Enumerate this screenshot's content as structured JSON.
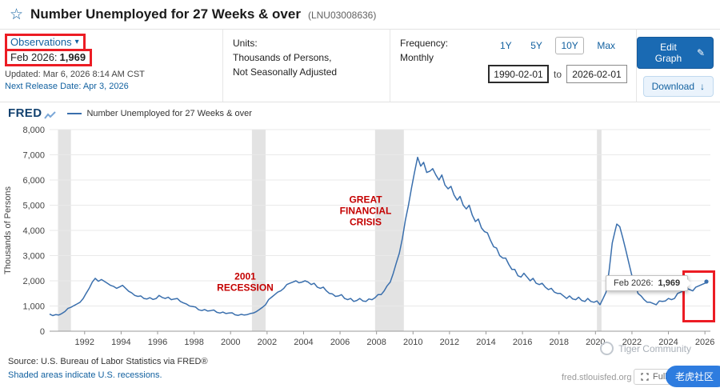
{
  "header": {
    "title": "Number Unemployed for 27 Weeks & over",
    "series_id": "(LNU03008636)"
  },
  "meta": {
    "observations_label": "Observations",
    "latest_label": "Feb 2026:",
    "latest_value": "1,969",
    "updated": "Updated: Mar 6, 2026 8:14 AM CST",
    "next_release": "Next Release Date: Apr 3, 2026",
    "units_label": "Units:",
    "units_line1": "Thousands of Persons,",
    "units_line2": "Not Seasonally Adjusted",
    "frequency_label": "Frequency:",
    "frequency_value": "Monthly"
  },
  "controls": {
    "ranges": [
      "1Y",
      "5Y",
      "10Y",
      "Max"
    ],
    "date_from": "1990-02-01",
    "to_label": "to",
    "date_to": "2026-02-01",
    "edit_graph": "Edit Graph",
    "download": "Download"
  },
  "chart": {
    "logo": "FRED",
    "legend": "Number Unemployed for 27 Weeks & over",
    "tooltip": {
      "label": "Feb 2026:",
      "value": "1,969"
    }
  },
  "chart_data": {
    "type": "line",
    "title": "Number Unemployed for 27 Weeks & over",
    "series_id": "LNU03008636",
    "units": "Thousands of Persons",
    "frequency": "Monthly",
    "ylabel": "Thousands of Persons",
    "xlim": [
      1990.08,
      2026.3
    ],
    "ylim": [
      0,
      8000
    ],
    "yticks": [
      0,
      1000,
      2000,
      3000,
      4000,
      5000,
      6000,
      7000,
      8000
    ],
    "ytick_labels": [
      "0",
      "1,000",
      "2,000",
      "3,000",
      "4,000",
      "5,000",
      "6,000",
      "7,000",
      "8,000"
    ],
    "xticks": [
      1992,
      1994,
      1996,
      1998,
      2000,
      2002,
      2004,
      2006,
      2008,
      2010,
      2012,
      2014,
      2016,
      2018,
      2020,
      2022,
      2024,
      2026
    ],
    "line_color": "#3a6fad",
    "grid": true,
    "recessions": [
      [
        1990.54,
        1991.25
      ],
      [
        2001.17,
        2001.92
      ],
      [
        2007.92,
        2009.5
      ],
      [
        2020.08,
        2020.33
      ]
    ],
    "annotations": [
      {
        "lines": [
          "2001",
          "RECESSION"
        ],
        "x": 2000.8,
        "y": 2050,
        "color": "#c40000"
      },
      {
        "lines": [
          "GREAT",
          "FINANCIAL",
          "CRISIS"
        ],
        "x": 2007.4,
        "y": 5100,
        "color": "#c40000"
      }
    ],
    "latest_point": {
      "date": "Feb 2026",
      "value": 1969
    },
    "points": [
      [
        1990.08,
        680
      ],
      [
        1990.25,
        620
      ],
      [
        1990.42,
        660
      ],
      [
        1990.58,
        640
      ],
      [
        1990.75,
        700
      ],
      [
        1990.92,
        780
      ],
      [
        1991.08,
        900
      ],
      [
        1991.25,
        950
      ],
      [
        1991.42,
        1020
      ],
      [
        1991.58,
        1080
      ],
      [
        1991.75,
        1150
      ],
      [
        1991.92,
        1300
      ],
      [
        1992.08,
        1500
      ],
      [
        1992.25,
        1700
      ],
      [
        1992.42,
        1950
      ],
      [
        1992.58,
        2100
      ],
      [
        1992.75,
        1980
      ],
      [
        1992.92,
        2050
      ],
      [
        1993.08,
        1980
      ],
      [
        1993.25,
        1900
      ],
      [
        1993.42,
        1820
      ],
      [
        1993.58,
        1780
      ],
      [
        1993.75,
        1700
      ],
      [
        1993.92,
        1760
      ],
      [
        1994.08,
        1820
      ],
      [
        1994.25,
        1700
      ],
      [
        1994.42,
        1580
      ],
      [
        1994.58,
        1520
      ],
      [
        1994.75,
        1420
      ],
      [
        1994.92,
        1380
      ],
      [
        1995.08,
        1400
      ],
      [
        1995.25,
        1300
      ],
      [
        1995.42,
        1280
      ],
      [
        1995.58,
        1330
      ],
      [
        1995.75,
        1260
      ],
      [
        1995.92,
        1300
      ],
      [
        1996.08,
        1420
      ],
      [
        1996.25,
        1340
      ],
      [
        1996.42,
        1300
      ],
      [
        1996.58,
        1350
      ],
      [
        1996.75,
        1250
      ],
      [
        1996.92,
        1280
      ],
      [
        1997.08,
        1300
      ],
      [
        1997.25,
        1180
      ],
      [
        1997.42,
        1120
      ],
      [
        1997.58,
        1080
      ],
      [
        1997.75,
        1000
      ],
      [
        1997.92,
        980
      ],
      [
        1998.08,
        960
      ],
      [
        1998.25,
        850
      ],
      [
        1998.42,
        820
      ],
      [
        1998.58,
        860
      ],
      [
        1998.75,
        800
      ],
      [
        1998.92,
        820
      ],
      [
        1999.08,
        840
      ],
      [
        1999.25,
        750
      ],
      [
        1999.42,
        720
      ],
      [
        1999.58,
        760
      ],
      [
        1999.75,
        700
      ],
      [
        1999.92,
        720
      ],
      [
        2000.08,
        730
      ],
      [
        2000.25,
        650
      ],
      [
        2000.42,
        630
      ],
      [
        2000.58,
        670
      ],
      [
        2000.75,
        640
      ],
      [
        2000.92,
        660
      ],
      [
        2001.08,
        700
      ],
      [
        2001.25,
        720
      ],
      [
        2001.42,
        780
      ],
      [
        2001.58,
        860
      ],
      [
        2001.75,
        950
      ],
      [
        2001.92,
        1050
      ],
      [
        2002.08,
        1250
      ],
      [
        2002.25,
        1350
      ],
      [
        2002.42,
        1450
      ],
      [
        2002.58,
        1550
      ],
      [
        2002.75,
        1600
      ],
      [
        2002.92,
        1700
      ],
      [
        2003.08,
        1850
      ],
      [
        2003.25,
        1900
      ],
      [
        2003.42,
        1950
      ],
      [
        2003.58,
        2000
      ],
      [
        2003.75,
        1920
      ],
      [
        2003.92,
        1950
      ],
      [
        2004.08,
        2000
      ],
      [
        2004.25,
        1950
      ],
      [
        2004.42,
        1850
      ],
      [
        2004.58,
        1900
      ],
      [
        2004.75,
        1750
      ],
      [
        2004.92,
        1700
      ],
      [
        2005.08,
        1750
      ],
      [
        2005.25,
        1600
      ],
      [
        2005.42,
        1500
      ],
      [
        2005.58,
        1480
      ],
      [
        2005.75,
        1380
      ],
      [
        2005.92,
        1400
      ],
      [
        2006.08,
        1450
      ],
      [
        2006.25,
        1300
      ],
      [
        2006.42,
        1250
      ],
      [
        2006.58,
        1300
      ],
      [
        2006.75,
        1180
      ],
      [
        2006.92,
        1220
      ],
      [
        2007.08,
        1300
      ],
      [
        2007.25,
        1200
      ],
      [
        2007.42,
        1180
      ],
      [
        2007.58,
        1280
      ],
      [
        2007.75,
        1250
      ],
      [
        2007.92,
        1330
      ],
      [
        2008.08,
        1450
      ],
      [
        2008.25,
        1450
      ],
      [
        2008.42,
        1600
      ],
      [
        2008.58,
        1800
      ],
      [
        2008.75,
        1950
      ],
      [
        2008.92,
        2300
      ],
      [
        2009.08,
        2700
      ],
      [
        2009.25,
        3100
      ],
      [
        2009.42,
        3700
      ],
      [
        2009.58,
        4400
      ],
      [
        2009.75,
        5000
      ],
      [
        2009.92,
        5700
      ],
      [
        2010.08,
        6300
      ],
      [
        2010.25,
        6900
      ],
      [
        2010.42,
        6550
      ],
      [
        2010.58,
        6700
      ],
      [
        2010.75,
        6300
      ],
      [
        2010.92,
        6350
      ],
      [
        2011.08,
        6450
      ],
      [
        2011.25,
        6200
      ],
      [
        2011.42,
        6000
      ],
      [
        2011.58,
        6200
      ],
      [
        2011.75,
        5800
      ],
      [
        2011.92,
        5650
      ],
      [
        2012.08,
        5750
      ],
      [
        2012.25,
        5400
      ],
      [
        2012.42,
        5200
      ],
      [
        2012.58,
        5350
      ],
      [
        2012.75,
        5000
      ],
      [
        2012.92,
        4850
      ],
      [
        2013.08,
        5000
      ],
      [
        2013.25,
        4600
      ],
      [
        2013.42,
        4350
      ],
      [
        2013.58,
        4450
      ],
      [
        2013.75,
        4100
      ],
      [
        2013.92,
        3950
      ],
      [
        2014.08,
        3900
      ],
      [
        2014.25,
        3600
      ],
      [
        2014.42,
        3350
      ],
      [
        2014.58,
        3300
      ],
      [
        2014.75,
        3000
      ],
      [
        2014.92,
        2900
      ],
      [
        2015.08,
        2900
      ],
      [
        2015.25,
        2650
      ],
      [
        2015.42,
        2450
      ],
      [
        2015.58,
        2450
      ],
      [
        2015.75,
        2200
      ],
      [
        2015.92,
        2150
      ],
      [
        2016.08,
        2300
      ],
      [
        2016.25,
        2150
      ],
      [
        2016.42,
        2000
      ],
      [
        2016.58,
        2100
      ],
      [
        2016.75,
        1900
      ],
      [
        2016.92,
        1850
      ],
      [
        2017.08,
        1900
      ],
      [
        2017.25,
        1750
      ],
      [
        2017.42,
        1650
      ],
      [
        2017.58,
        1700
      ],
      [
        2017.75,
        1550
      ],
      [
        2017.92,
        1500
      ],
      [
        2018.08,
        1500
      ],
      [
        2018.25,
        1400
      ],
      [
        2018.42,
        1300
      ],
      [
        2018.58,
        1400
      ],
      [
        2018.75,
        1280
      ],
      [
        2018.92,
        1250
      ],
      [
        2019.08,
        1350
      ],
      [
        2019.25,
        1220
      ],
      [
        2019.42,
        1180
      ],
      [
        2019.58,
        1300
      ],
      [
        2019.75,
        1180
      ],
      [
        2019.92,
        1150
      ],
      [
        2020.08,
        1200
      ],
      [
        2020.25,
        1050
      ],
      [
        2020.42,
        1300
      ],
      [
        2020.58,
        1550
      ],
      [
        2020.75,
        2400
      ],
      [
        2020.92,
        3500
      ],
      [
        2021.08,
        4000
      ],
      [
        2021.17,
        4250
      ],
      [
        2021.33,
        4150
      ],
      [
        2021.5,
        3700
      ],
      [
        2021.67,
        3200
      ],
      [
        2021.83,
        2700
      ],
      [
        2022.0,
        2200
      ],
      [
        2022.17,
        1900
      ],
      [
        2022.33,
        1500
      ],
      [
        2022.5,
        1400
      ],
      [
        2022.67,
        1250
      ],
      [
        2022.83,
        1150
      ],
      [
        2023.0,
        1150
      ],
      [
        2023.17,
        1100
      ],
      [
        2023.33,
        1050
      ],
      [
        2023.5,
        1200
      ],
      [
        2023.67,
        1180
      ],
      [
        2023.83,
        1200
      ],
      [
        2024.0,
        1300
      ],
      [
        2024.17,
        1250
      ],
      [
        2024.33,
        1300
      ],
      [
        2024.5,
        1500
      ],
      [
        2024.67,
        1550
      ],
      [
        2024.83,
        1600
      ],
      [
        2025.0,
        1700
      ],
      [
        2025.17,
        1650
      ],
      [
        2025.33,
        1600
      ],
      [
        2025.5,
        1750
      ],
      [
        2025.67,
        1800
      ],
      [
        2025.83,
        1850
      ],
      [
        2026.0,
        1900
      ],
      [
        2026.08,
        1969
      ]
    ]
  },
  "footer": {
    "source": "Source: U.S. Bureau of Labor Statistics via FRED®",
    "shaded": "Shaded areas indicate U.S. recessions.",
    "site": "fred.stlouisfed.org",
    "fullscreen": "Fullscreen",
    "watermark": "Tiger Community",
    "badge": "老虎社区"
  }
}
